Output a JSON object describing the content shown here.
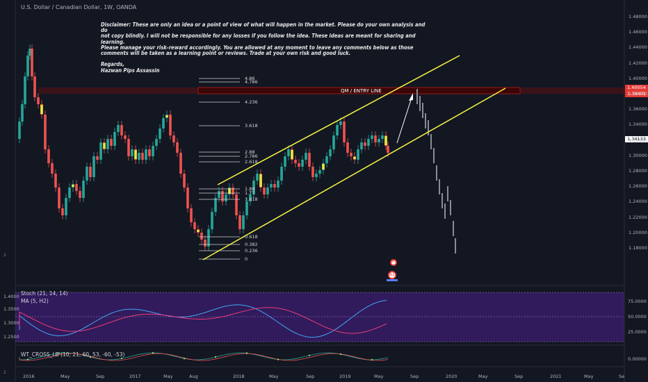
{
  "header": {
    "symbol_line": "U.S. Dollar / Canadian Dollar, 1W, OANDA"
  },
  "disclaimer": {
    "text": "Disclaimer: These are only an idea or a point of view of what will happen in the market. Please do your own analysis and do\nnot copy blindly. I will not be responsible for any losses if you follow the idea. These ideas are meant for sharing and learning.\nPlease manage your risk-reward accordingly. You are allowed at any moment to leave any comments below as those\ncomments will be taken as a learning point or reviews. Trade at your own risk and good luck.\n\nRegards,\nHazwan Pips Assassin"
  },
  "entry_line": {
    "label": "QM / ENTRY LINE"
  },
  "fib_levels": [
    "4.86",
    "4.786",
    "4.236",
    "3.618",
    "2.88",
    "2.786",
    "2.618",
    "1.88",
    "1.77",
    "1.618",
    "0.618",
    "0.382",
    "0.236",
    "0"
  ],
  "price_axis": {
    "ticks": [
      "1.48000",
      "1.46000",
      "1.44000",
      "1.42000",
      "1.40000",
      "1.38000",
      "1.36000",
      "1.34000",
      "1.32000",
      "1.30000",
      "1.28000",
      "1.26000",
      "1.24000",
      "1.22000",
      "1.20000",
      "1.18000"
    ],
    "badges": {
      "upper": "1.40054",
      "lower": "1.39401",
      "current": "1.34133"
    }
  },
  "time_axis": {
    "ticks": [
      "2016",
      "May",
      "Sep",
      "2017",
      "May",
      "Aug",
      "2018",
      "May",
      "Sep",
      "2019",
      "May",
      "Sep",
      "2020",
      "May",
      "Sep",
      "2021",
      "May",
      "Se"
    ]
  },
  "stoch": {
    "label1": "Stoch (21, 14, 14)",
    "label2": "MA (5, H2)",
    "left_ticks": [
      "1.4000",
      "1.3500",
      "1.3000",
      "1.2500"
    ],
    "right_ticks": [
      "75.0000",
      "50.0000",
      "25.0000"
    ]
  },
  "wt": {
    "label": "WT_CROSS_LB (10, 21, 60, 53, -60, -53)",
    "right_tick": "0.00000"
  },
  "side": {
    "top": "2",
    "bottom": "2"
  },
  "events": {
    "a": "3",
    "b": "81"
  },
  "colors": {
    "bg": "#131722",
    "bull": "#26a69a",
    "bear": "#ef5350",
    "channel": "#f5f542",
    "entry": "#b71c1c",
    "stoch_bg": "#4b1f8c"
  }
}
